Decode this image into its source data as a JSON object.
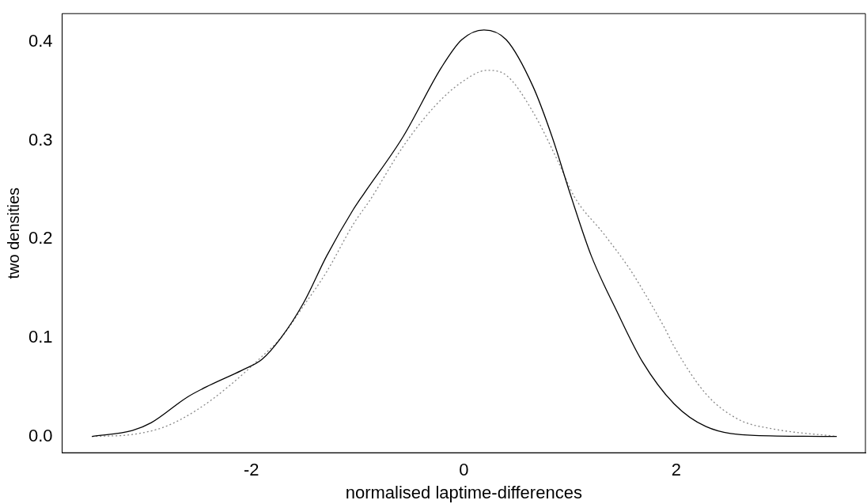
{
  "chart_data": {
    "type": "line",
    "xlabel": "normalised laptime-differences",
    "ylabel": "two densities",
    "xlim": [
      -3.78,
      3.78
    ],
    "ylim": [
      -0.0165,
      0.4285
    ],
    "xticks": [
      -2,
      0,
      2
    ],
    "yticks": [
      {
        "value": 0,
        "label": "0.0"
      },
      0.1,
      0.2,
      0.3,
      0.4
    ],
    "grid": false,
    "legend": false,
    "marker": "none",
    "series": [
      {
        "color": "#000000",
        "line_style": "solid",
        "x": [
          -3.5,
          -3.12,
          -2.94,
          -2.6,
          -2.39,
          -2.09,
          -1.9,
          -1.72,
          -1.51,
          -1.29,
          -1.04,
          -0.94,
          -0.57,
          -0.21,
          -0.02,
          0.19,
          0.4,
          0.65,
          0.83,
          1.01,
          1.2,
          1.44,
          1.68,
          1.98,
          2.28,
          2.74,
          3.51
        ],
        "values": [
          0,
          0.006,
          0.014,
          0.04,
          0.052,
          0.067,
          0.078,
          0.1,
          0.135,
          0.183,
          0.23,
          0.246,
          0.304,
          0.374,
          0.402,
          0.412,
          0.402,
          0.355,
          0.304,
          0.243,
          0.183,
          0.127,
          0.076,
          0.033,
          0.01,
          0.001,
          0
        ]
      },
      {
        "color": "#888888",
        "line_style": "dotted",
        "x": [
          -3.5,
          -3.12,
          -2.81,
          -2.51,
          -2.21,
          -1.9,
          -1.72,
          -1.51,
          -1.29,
          -1.04,
          -0.88,
          -0.57,
          -0.27,
          -0.02,
          0.22,
          0.4,
          0.65,
          0.89,
          1.04,
          1.32,
          1.56,
          1.67,
          1.89,
          1.98,
          2.28,
          2.59,
          2.89,
          3.51
        ],
        "values": [
          0,
          0.002,
          0.01,
          0.027,
          0.051,
          0.081,
          0.1,
          0.132,
          0.167,
          0.215,
          0.24,
          0.294,
          0.335,
          0.359,
          0.371,
          0.366,
          0.329,
          0.278,
          0.243,
          0.205,
          0.17,
          0.151,
          0.11,
          0.091,
          0.043,
          0.017,
          0.008,
          0
        ]
      }
    ]
  }
}
